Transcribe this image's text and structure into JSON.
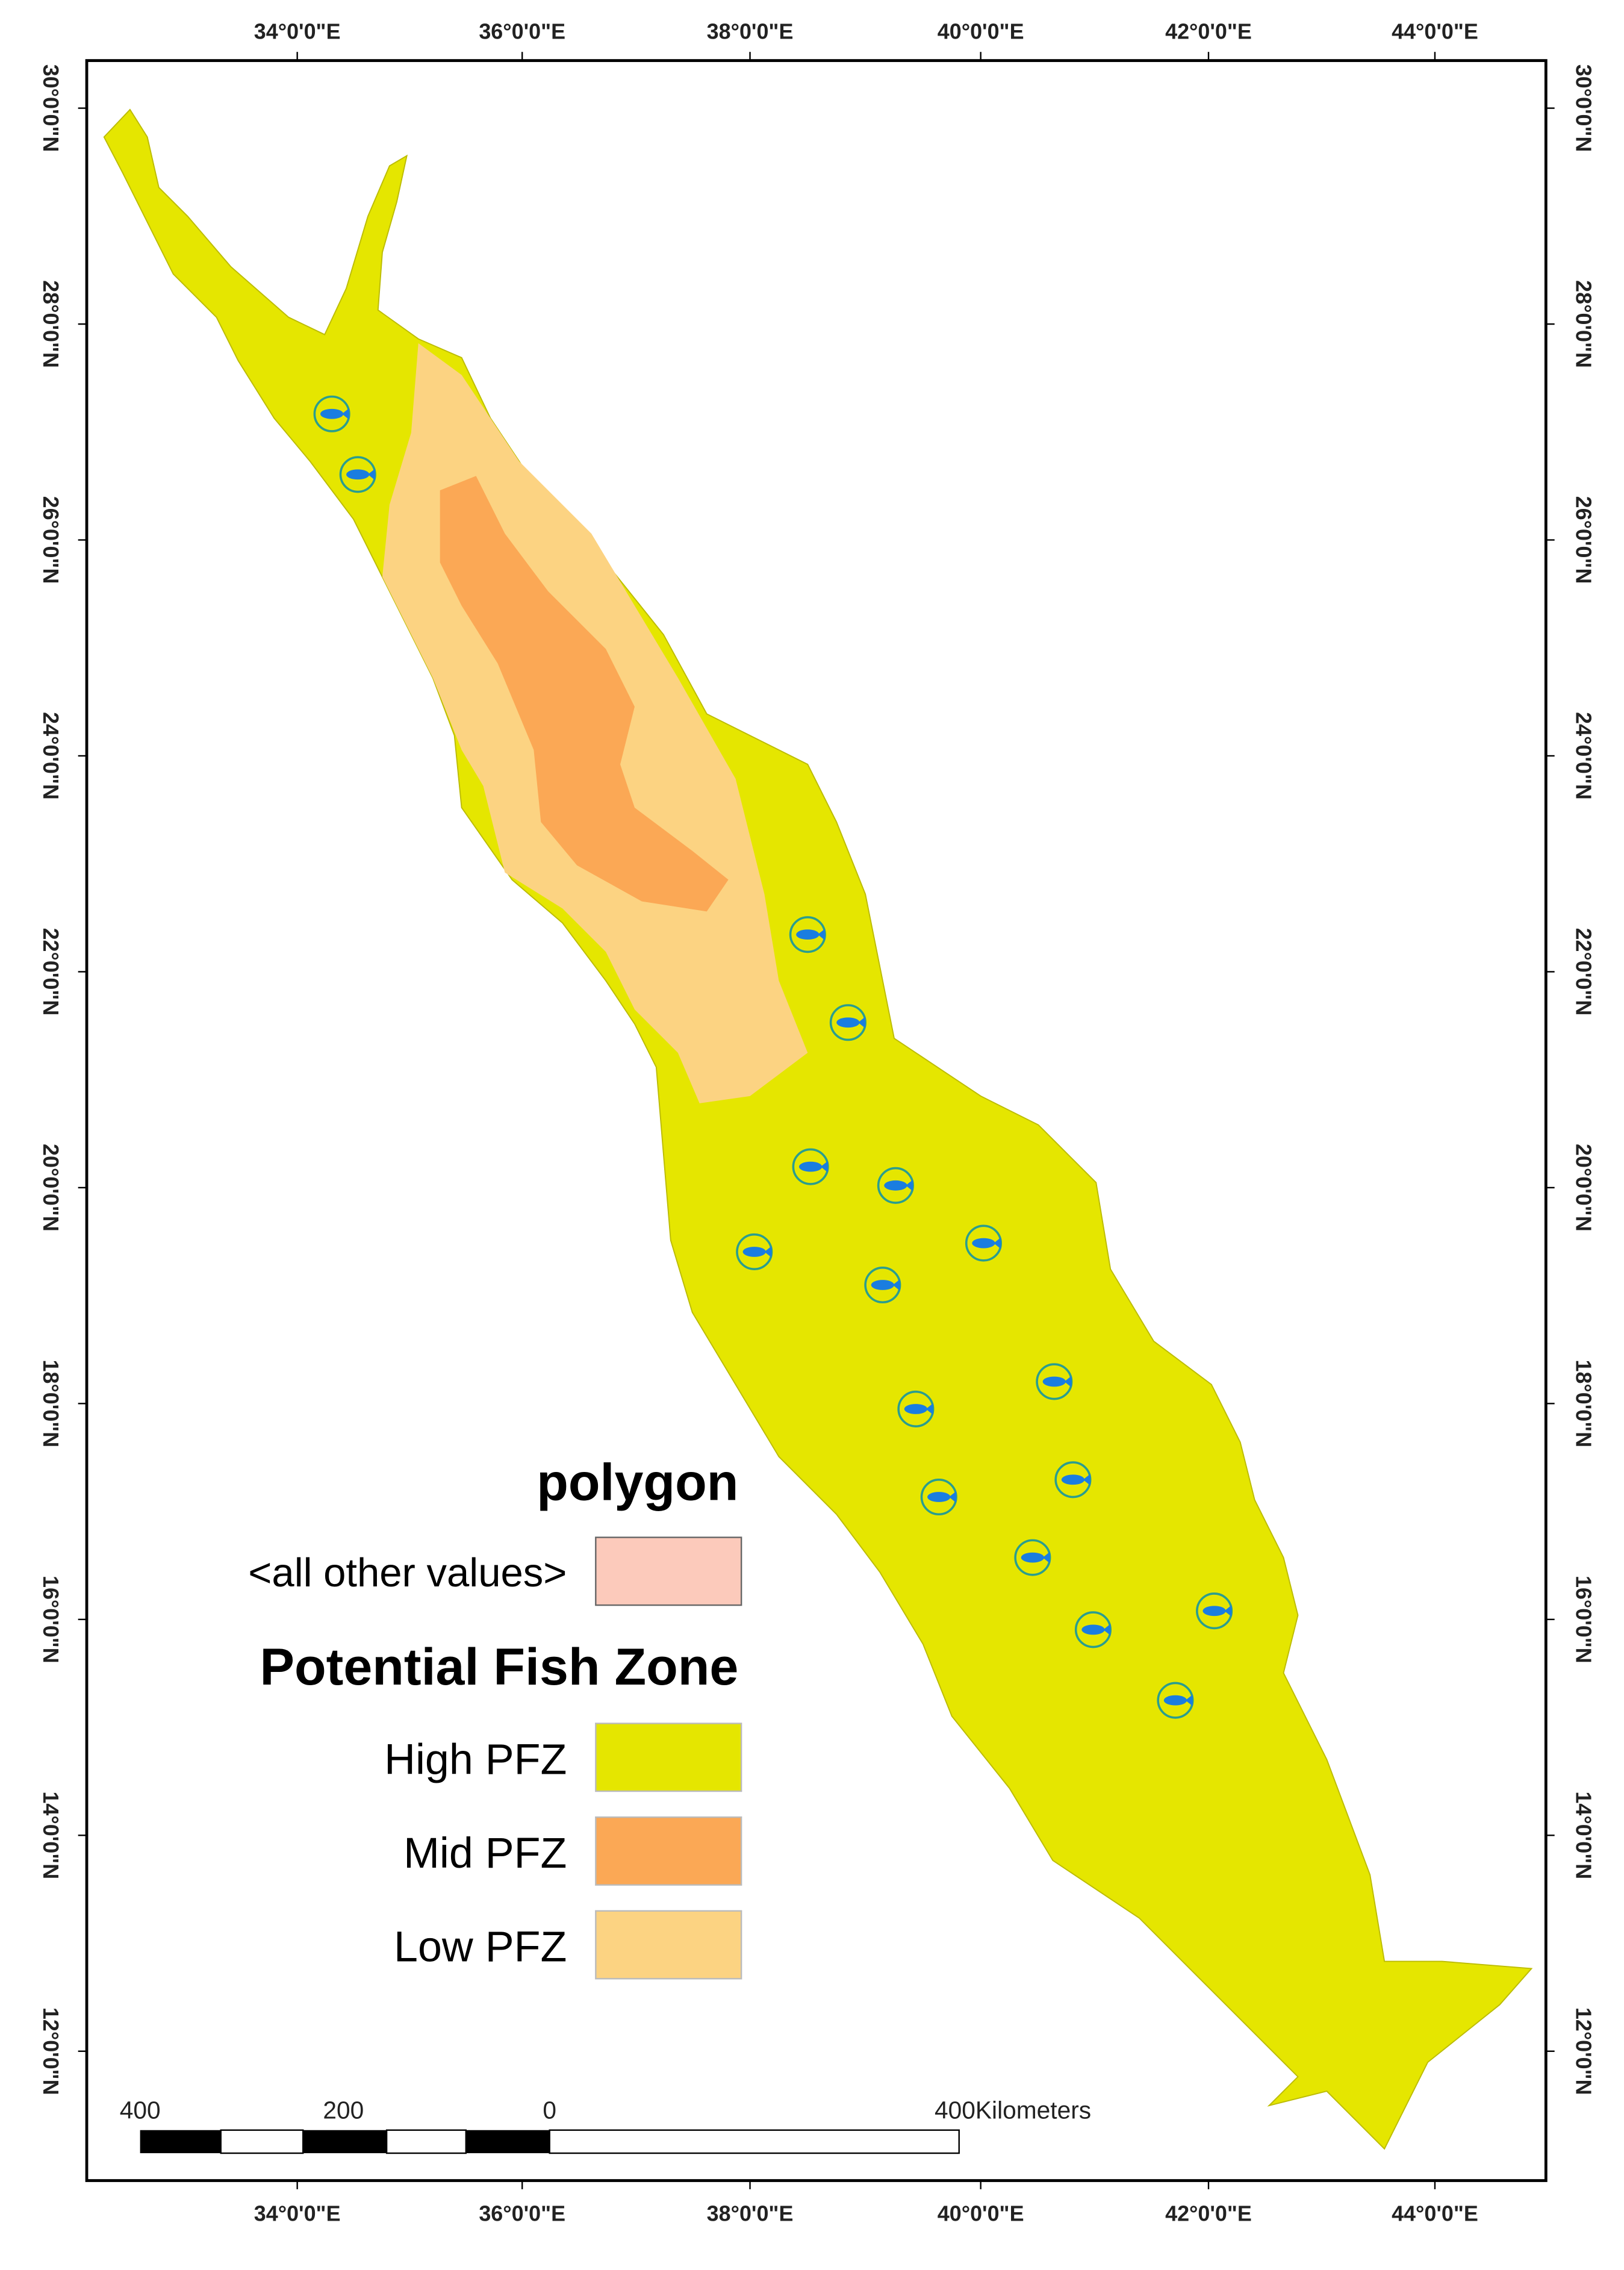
{
  "map": {
    "longitude_labels": [
      "34°0'0\"E",
      "36°0'0\"E",
      "38°0'0\"E",
      "40°0'0\"E",
      "42°0'0\"E",
      "44°0'0\"E"
    ],
    "latitude_labels": [
      "30°0'0\"N",
      "28°0'0\"N",
      "26°0'0\"N",
      "24°0'0\"N",
      "22°0'0\"N",
      "20°0'0\"N",
      "18°0'0\"N",
      "16°0'0\"N",
      "14°0'0\"N",
      "12°0'0\"N"
    ],
    "legend": {
      "polygon_heading": "polygon",
      "other_values": {
        "label": "<all other values>",
        "color": "#fccabb"
      },
      "zone_heading": "Potential Fish Zone",
      "items": [
        {
          "label": "High PFZ",
          "color": "#e5e600"
        },
        {
          "label": "Mid PFZ",
          "color": "#fba855"
        },
        {
          "label": "Low PFZ",
          "color": "#fcd382"
        }
      ]
    },
    "scale_bar": {
      "labels": [
        "400",
        "200",
        "0",
        "400Kilometers"
      ]
    }
  }
}
